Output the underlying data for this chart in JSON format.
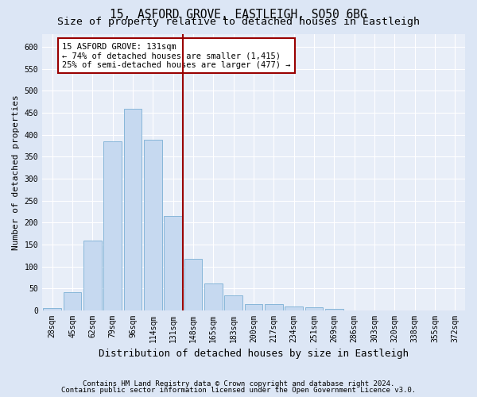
{
  "title_line1": "15, ASFORD GROVE, EASTLEIGH, SO50 6BG",
  "title_line2": "Size of property relative to detached houses in Eastleigh",
  "xlabel": "Distribution of detached houses by size in Eastleigh",
  "ylabel": "Number of detached properties",
  "footnote1": "Contains HM Land Registry data © Crown copyright and database right 2024.",
  "footnote2": "Contains public sector information licensed under the Open Government Licence v3.0.",
  "annotation_line1": "15 ASFORD GROVE: 131sqm",
  "annotation_line2": "← 74% of detached houses are smaller (1,415)",
  "annotation_line3": "25% of semi-detached houses are larger (477) →",
  "bar_labels": [
    "28sqm",
    "45sqm",
    "62sqm",
    "79sqm",
    "96sqm",
    "114sqm",
    "131sqm",
    "148sqm",
    "165sqm",
    "183sqm",
    "200sqm",
    "217sqm",
    "234sqm",
    "251sqm",
    "269sqm",
    "286sqm",
    "303sqm",
    "320sqm",
    "338sqm",
    "355sqm",
    "372sqm"
  ],
  "bar_values": [
    5,
    42,
    160,
    385,
    460,
    388,
    215,
    118,
    62,
    35,
    15,
    15,
    10,
    7,
    4,
    1,
    0,
    0,
    0,
    0,
    0
  ],
  "bar_color": "#c6d9f0",
  "bar_edge_color": "#7bafd4",
  "vline_color": "#990000",
  "annotation_box_color": "#990000",
  "ylim_max": 630,
  "yticks": [
    0,
    50,
    100,
    150,
    200,
    250,
    300,
    350,
    400,
    450,
    500,
    550,
    600
  ],
  "fig_bg_color": "#dce6f5",
  "plot_bg_color": "#e8eef8",
  "grid_color": "#ffffff",
  "title_fontsize": 10.5,
  "subtitle_fontsize": 9.5,
  "tick_fontsize": 7,
  "xlabel_fontsize": 9,
  "ylabel_fontsize": 8,
  "annotation_fontsize": 7.5,
  "footnote_fontsize": 6.5
}
